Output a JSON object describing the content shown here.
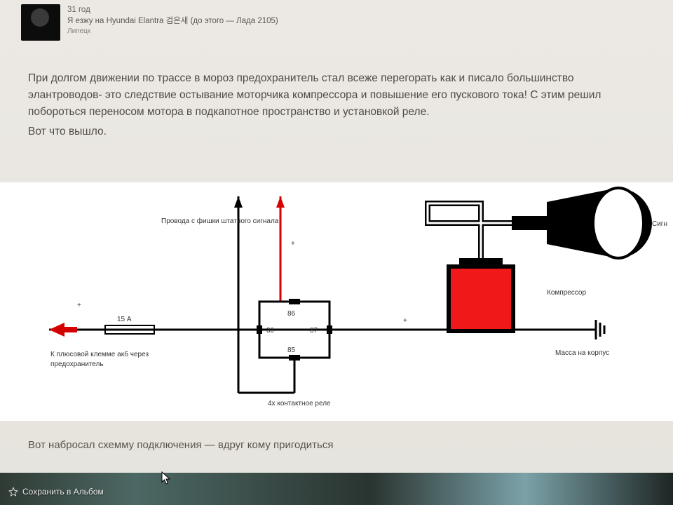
{
  "header": {
    "age": "31 год",
    "car": "Я езжу на Hyundai Elantra 검은새 (до этого — Лада 2105)",
    "city": "Липецк"
  },
  "post": {
    "p1": "При долгом движении по трассе в мороз предохранитель стал всеже перегорать как и писало большинство элантроводов- это следствие остывание моторчика компрессора и повышение его пускового тока! С этим решил побороться переносом мотора в подкапотное пространство и установкой реле.",
    "p2": "Вот что вышло."
  },
  "diagram": {
    "labels": {
      "wires_from_stock": "Провода с фишки штатного сигнала",
      "fuse": "15 А",
      "to_battery": "К плюсовой клемме акб через предохранитель",
      "relay": "4х контактное реле",
      "compressor": "Компрессор",
      "ground": "Масса на корпус",
      "horn": "Сигн",
      "plus": "+",
      "pin30": "30",
      "pin85": "85",
      "pin86": "86",
      "pin87": "87"
    },
    "colors": {
      "wire": "#000000",
      "plus": "#d40000",
      "compressor_fill": "#f01818",
      "horn_fill": "#000000",
      "relay_stroke": "#000000",
      "bg": "#ffffff"
    }
  },
  "caption": "Вот набросал схемму подключения — вдруг кому пригодиться",
  "save_label": "Сохранить в Альбом"
}
